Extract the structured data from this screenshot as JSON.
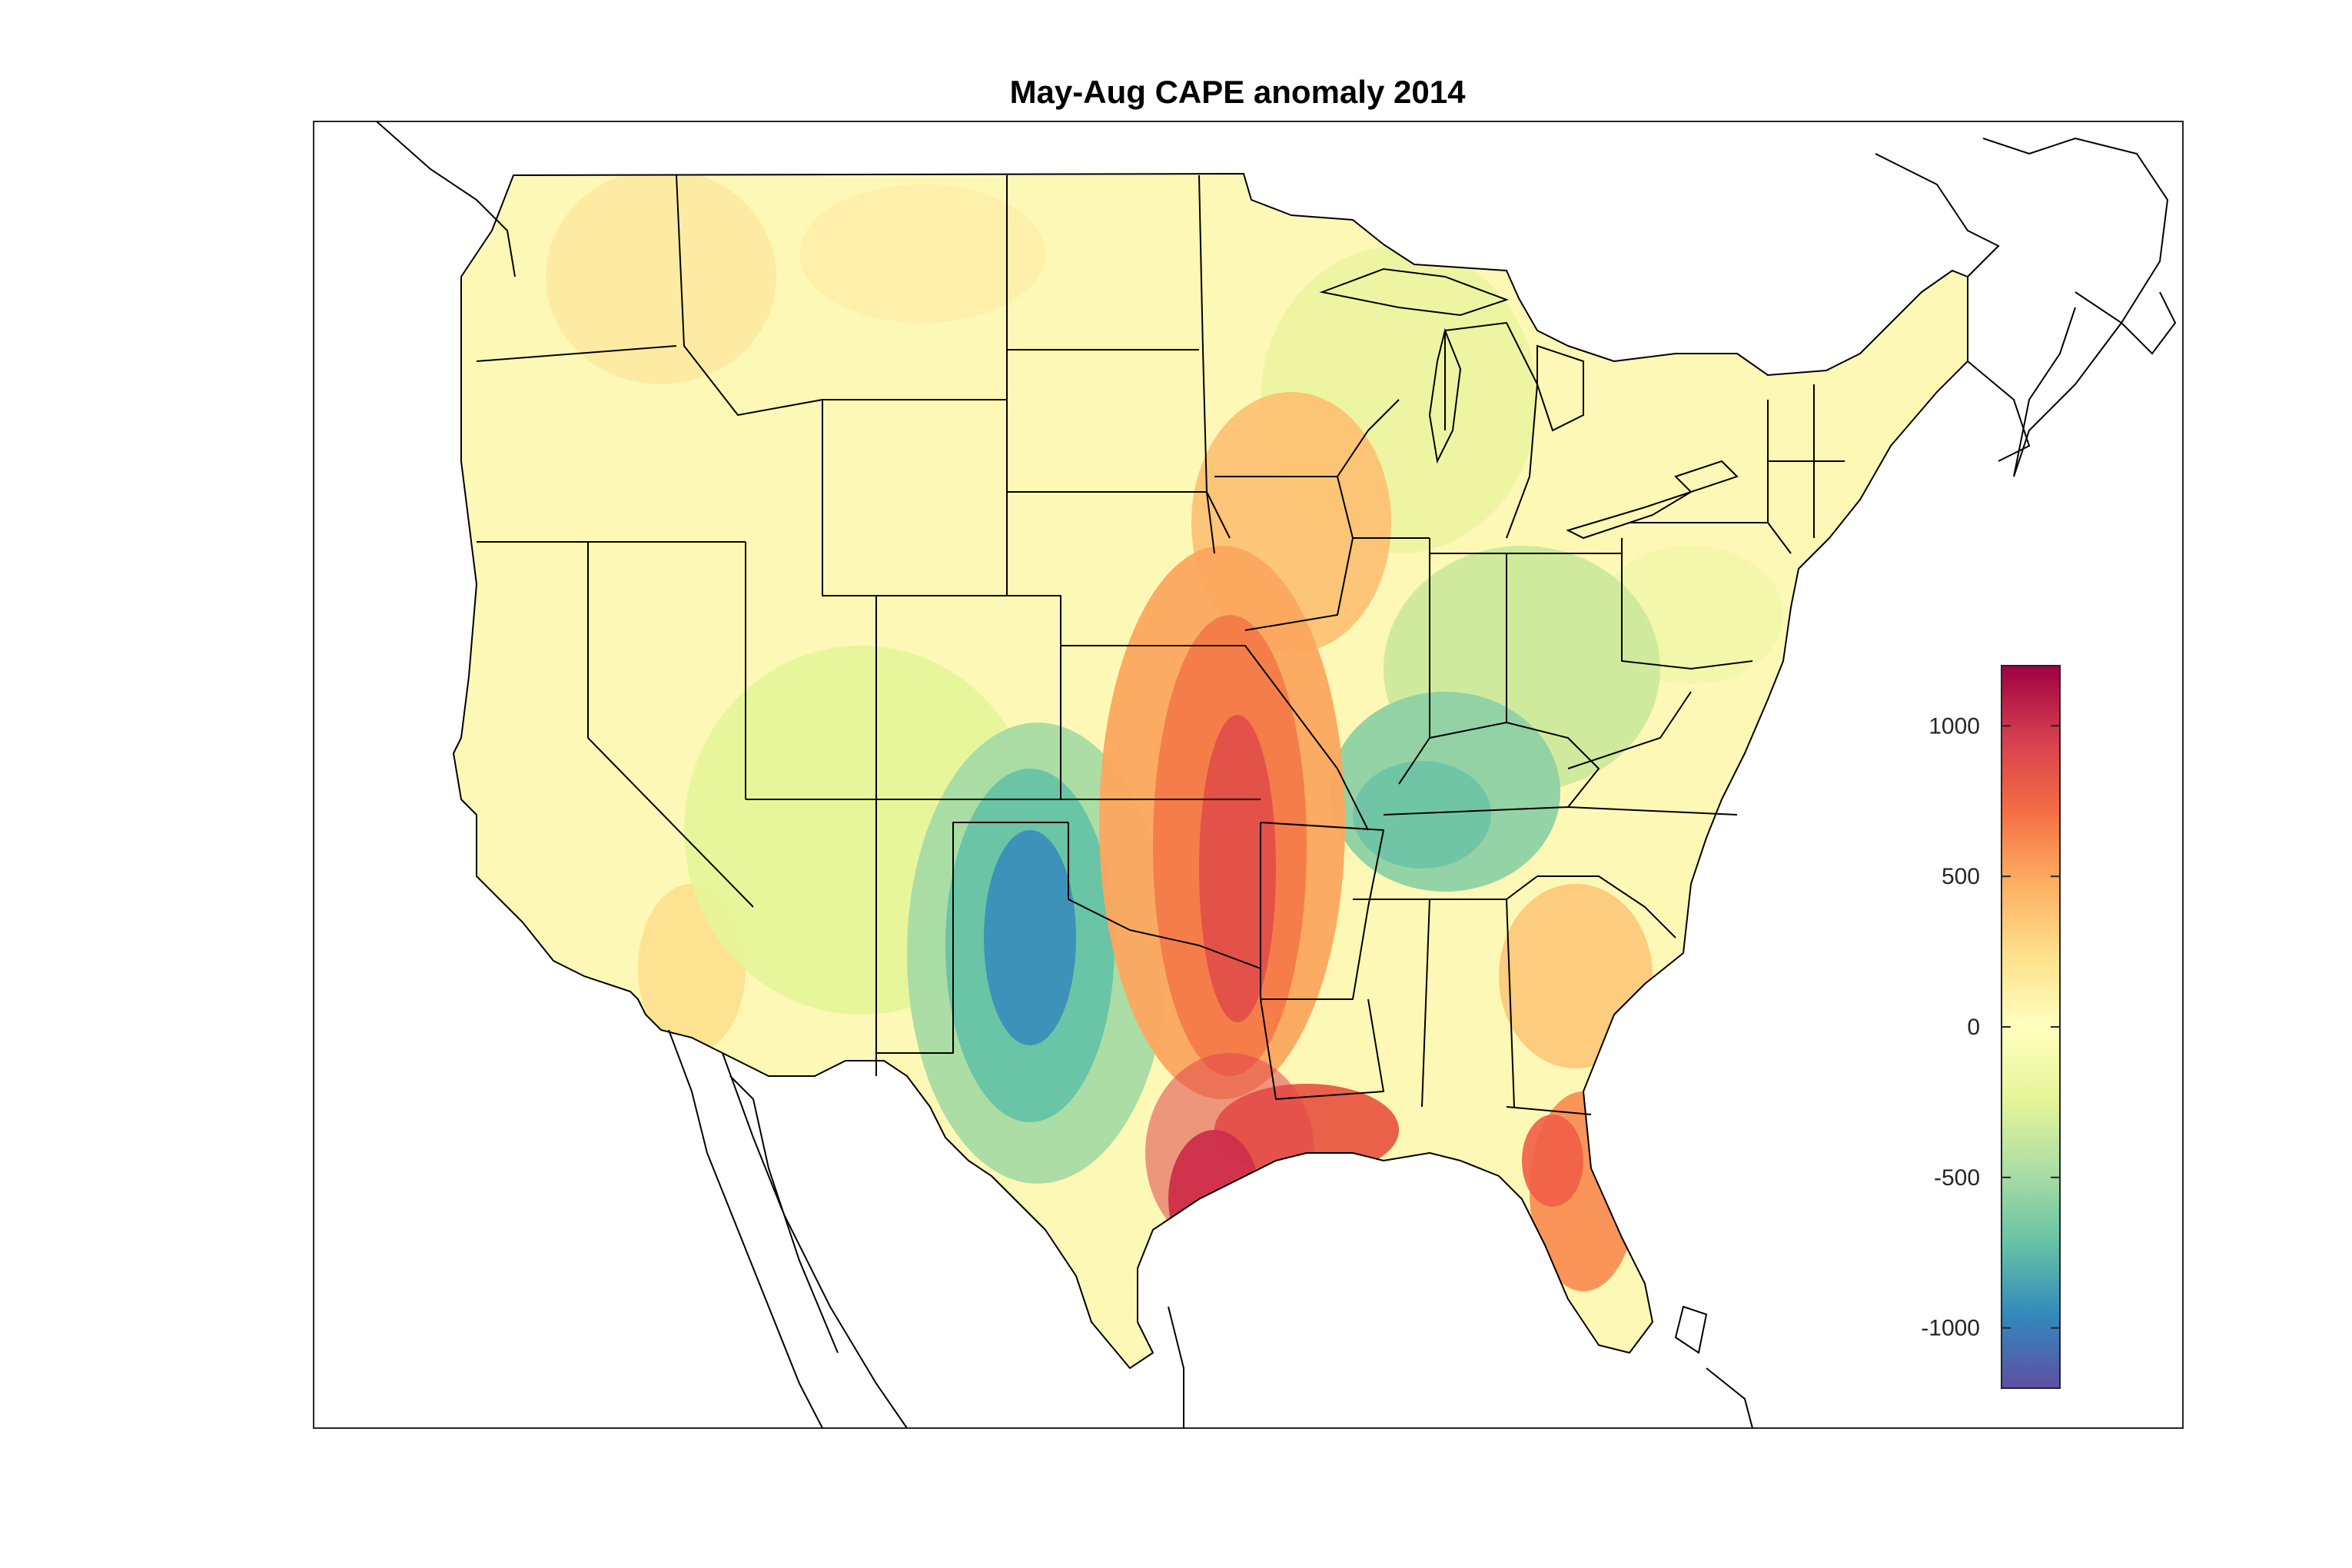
{
  "title": "May-Aug CAPE anomaly 2014",
  "colorbar": {
    "min": -1200,
    "max": 1200,
    "ticks": [
      {
        "value": 1000,
        "label": "1000"
      },
      {
        "value": 500,
        "label": "500"
      },
      {
        "value": 0,
        "label": "0"
      },
      {
        "value": -500,
        "label": "-500"
      },
      {
        "value": -1000,
        "label": "-1000"
      }
    ],
    "colormap": [
      "#5e4fa2",
      "#3288bd",
      "#66c2a5",
      "#abdda4",
      "#e6f598",
      "#ffffbf",
      "#fee08b",
      "#fdae61",
      "#f46d43",
      "#d53e4f",
      "#9e0142"
    ]
  },
  "anomaly_regions": [
    {
      "name": "southern-plains-negative",
      "value": -750
    },
    {
      "name": "tennessee-valley-negative",
      "value": -450
    },
    {
      "name": "ohio-valley-negative",
      "value": -200
    },
    {
      "name": "southwest-slight-negative",
      "value": -120
    },
    {
      "name": "great-lakes-slight-negative",
      "value": -80
    },
    {
      "name": "mississippi-river-positive",
      "value": 700
    },
    {
      "name": "texas-gulf-coast-positive",
      "value": 1150
    },
    {
      "name": "louisiana-coast-positive",
      "value": 850
    },
    {
      "name": "florida-positive",
      "value": 550
    },
    {
      "name": "georgia-positive",
      "value": 250
    },
    {
      "name": "upper-midwest-positive",
      "value": 380
    },
    {
      "name": "northwest-slight-positive",
      "value": 120
    },
    {
      "name": "southern-california-positive",
      "value": 200
    }
  ]
}
